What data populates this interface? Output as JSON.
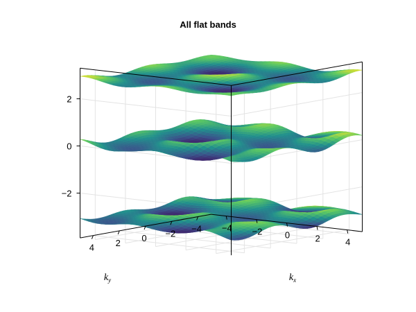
{
  "chart_data": {
    "type": "surface",
    "title": "All flat bands",
    "xlabel": "k",
    "xlabel_subscript": "x",
    "ylabel": "k",
    "ylabel_subscript": "y",
    "zlabel": "",
    "xlim": [
      -5,
      5
    ],
    "ylim": [
      -5,
      5
    ],
    "zlim": [
      -3.9,
      3.3
    ],
    "x_ticks": [
      -4,
      -2,
      0,
      2,
      4
    ],
    "x_tick_labels": [
      "−4",
      "−2",
      "0",
      "2",
      "4"
    ],
    "y_ticks": [
      4,
      2,
      0,
      -2,
      -4
    ],
    "y_tick_labels": [
      "4",
      "2",
      "0",
      "−2",
      "−4"
    ],
    "z_ticks": [
      -2,
      0,
      2
    ],
    "z_tick_labels": [
      "−2",
      "0",
      "2"
    ],
    "grid": true,
    "colormap": "viridis",
    "colormap_stops": [
      "#440154",
      "#3b528b",
      "#21908d",
      "#5dc962",
      "#fde725"
    ],
    "series": [
      {
        "center": 2.75,
        "amplitude": 0.08
      },
      {
        "center": 0.0,
        "amplitude": 0.14
      },
      {
        "center": -3.1,
        "amplitude": 0.12
      }
    ]
  }
}
